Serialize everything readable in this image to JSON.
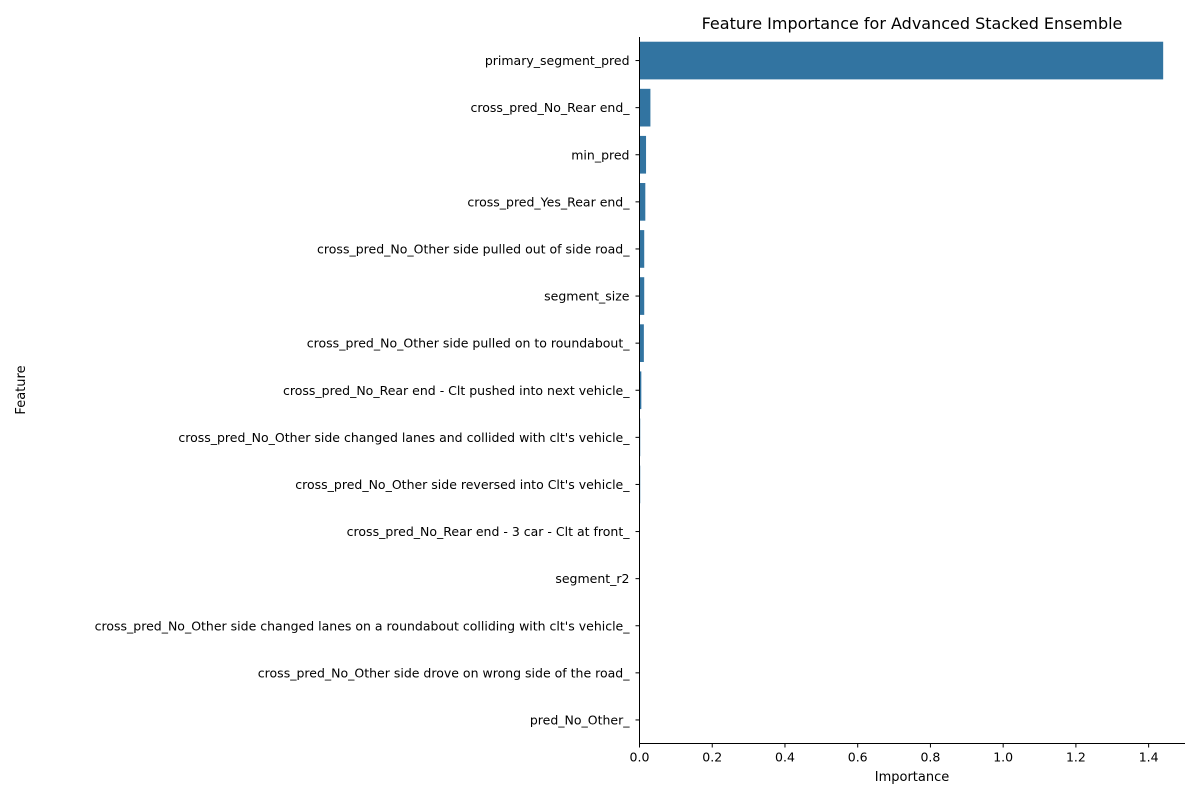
{
  "chart_data": {
    "type": "bar",
    "orientation": "horizontal",
    "title": "Feature Importance for Advanced Stacked Ensemble",
    "xlabel": "Importance",
    "ylabel": "Feature",
    "xlim": [
      0,
      1.5
    ],
    "xticks": [
      "0.0",
      "0.2",
      "0.4",
      "0.6",
      "0.8",
      "1.0",
      "1.2",
      "1.4"
    ],
    "bar_color": "#3274a1",
    "grid": false,
    "categories": [
      "primary_segment_pred",
      "cross_pred_No_Rear end_",
      "min_pred",
      "cross_pred_Yes_Rear end_",
      "cross_pred_No_Other side pulled out of side road_",
      "segment_size",
      "cross_pred_No_Other side pulled on to roundabout_",
      "cross_pred_No_Rear end - Clt pushed into next vehicle_",
      "cross_pred_No_Other side changed lanes and collided with clt's vehicle_",
      "cross_pred_No_Other side reversed into Clt's vehicle_",
      "cross_pred_No_Rear end - 3 car - Clt at front_",
      "segment_r2",
      "cross_pred_No_Other side changed lanes on a roundabout colliding with clt's vehicle_",
      "cross_pred_No_Other side drove on wrong side of the road_",
      "pred_No_Other_"
    ],
    "values": [
      1.44,
      0.03,
      0.018,
      0.016,
      0.013,
      0.013,
      0.012,
      0.005,
      0.002,
      0.002,
      0.001,
      0.001,
      0.001,
      0.001,
      0.001
    ]
  }
}
